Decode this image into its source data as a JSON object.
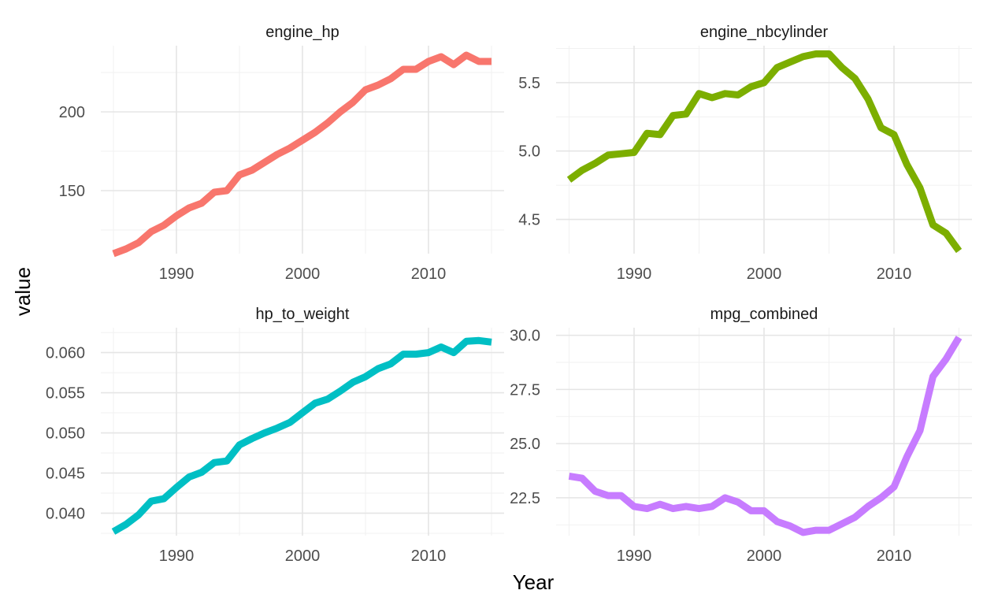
{
  "chart_data": {
    "type": "line",
    "xlabel": "Year",
    "ylabel": "value",
    "line_width": 9,
    "panels": [
      {
        "name": "engine_hp",
        "color": "#F8766D",
        "xlim": [
          1984,
          2016
        ],
        "ylim": [
          110,
          242
        ],
        "x_ticks": [
          1990,
          2000,
          2010
        ],
        "y_ticks": [
          150,
          200
        ],
        "y_tick_labels": [
          "150",
          "200"
        ],
        "x": [
          1985,
          1986,
          1987,
          1988,
          1989,
          1990,
          1991,
          1992,
          1993,
          1994,
          1995,
          1996,
          1997,
          1998,
          1999,
          2000,
          2001,
          2002,
          2003,
          2004,
          2005,
          2006,
          2007,
          2008,
          2009,
          2010,
          2011,
          2012,
          2013,
          2014,
          2015
        ],
        "y": [
          110,
          113,
          117,
          124,
          128,
          134,
          139,
          142,
          149,
          150,
          160,
          163,
          168,
          173,
          177,
          182,
          187,
          193,
          200,
          206,
          214,
          217,
          221,
          227,
          227,
          232,
          235,
          230,
          236,
          232,
          232
        ]
      },
      {
        "name": "engine_nbcylinder",
        "color": "#7CAE00",
        "xlim": [
          1984,
          2016
        ],
        "ylim": [
          4.25,
          5.77
        ],
        "x_ticks": [
          1990,
          2000,
          2010
        ],
        "y_ticks": [
          4.5,
          5.0,
          5.5
        ],
        "y_tick_labels": [
          "4.5",
          "5.0",
          "5.5"
        ],
        "x": [
          1985,
          1986,
          1987,
          1988,
          1989,
          1990,
          1991,
          1992,
          1993,
          1994,
          1995,
          1996,
          1997,
          1998,
          1999,
          2000,
          2001,
          2002,
          2003,
          2004,
          2005,
          2006,
          2007,
          2008,
          2009,
          2010,
          2011,
          2012,
          2013,
          2014,
          2015
        ],
        "y": [
          4.79,
          4.86,
          4.91,
          4.97,
          4.98,
          4.99,
          5.13,
          5.12,
          5.26,
          5.27,
          5.42,
          5.39,
          5.42,
          5.41,
          5.47,
          5.5,
          5.61,
          5.65,
          5.69,
          5.71,
          5.71,
          5.61,
          5.53,
          5.38,
          5.17,
          5.12,
          4.9,
          4.73,
          4.46,
          4.4,
          4.27
        ]
      },
      {
        "name": "hp_to_weight",
        "color": "#00BFC4",
        "xlim": [
          1984,
          2016
        ],
        "ylim": [
          0.0372,
          0.0631
        ],
        "x_ticks": [
          1990,
          2000,
          2010
        ],
        "y_ticks": [
          0.04,
          0.045,
          0.05,
          0.055,
          0.06
        ],
        "y_tick_labels": [
          "0.040",
          "0.045",
          "0.050",
          "0.055",
          "0.060"
        ],
        "x": [
          1985,
          1986,
          1987,
          1988,
          1989,
          1990,
          1991,
          1992,
          1993,
          1994,
          1995,
          1996,
          1997,
          1998,
          1999,
          2000,
          2001,
          2002,
          2003,
          2004,
          2005,
          2006,
          2007,
          2008,
          2009,
          2010,
          2011,
          2012,
          2013,
          2014,
          2015
        ],
        "y": [
          0.0377,
          0.0386,
          0.0398,
          0.0415,
          0.0418,
          0.0432,
          0.0445,
          0.0451,
          0.0463,
          0.0465,
          0.0485,
          0.0493,
          0.05,
          0.0506,
          0.0513,
          0.0525,
          0.0537,
          0.0542,
          0.0552,
          0.0563,
          0.057,
          0.058,
          0.0586,
          0.0598,
          0.0598,
          0.06,
          0.0607,
          0.06,
          0.0614,
          0.0615,
          0.0613
        ]
      },
      {
        "name": "mpg_combined",
        "color": "#C77CFF",
        "xlim": [
          1984,
          2016
        ],
        "ylim": [
          20.75,
          30.35
        ],
        "x_ticks": [
          1990,
          2000,
          2010
        ],
        "y_ticks": [
          22.5,
          25.0,
          27.5,
          30.0
        ],
        "y_tick_labels": [
          "22.5",
          "25.0",
          "27.5",
          "30.0"
        ],
        "x": [
          1985,
          1986,
          1987,
          1988,
          1989,
          1990,
          1991,
          1992,
          1993,
          1994,
          1995,
          1996,
          1997,
          1998,
          1999,
          2000,
          2001,
          2002,
          2003,
          2004,
          2005,
          2006,
          2007,
          2008,
          2009,
          2010,
          2011,
          2012,
          2013,
          2014,
          2015
        ],
        "y": [
          23.5,
          23.4,
          22.8,
          22.6,
          22.6,
          22.1,
          22.0,
          22.2,
          22.0,
          22.1,
          22.0,
          22.1,
          22.5,
          22.3,
          21.9,
          21.9,
          21.4,
          21.2,
          20.9,
          21.0,
          21.0,
          21.3,
          21.6,
          22.1,
          22.5,
          23.0,
          24.4,
          25.6,
          28.1,
          28.9,
          29.9
        ]
      }
    ]
  }
}
